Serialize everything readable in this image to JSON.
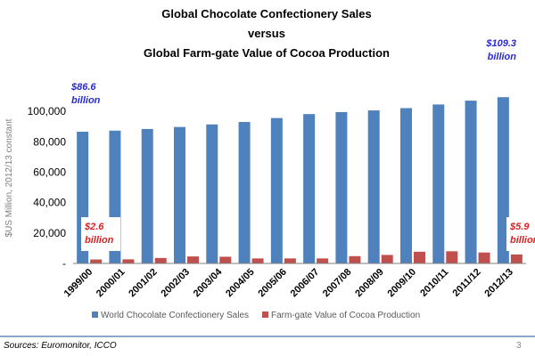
{
  "chart_data": {
    "type": "bar",
    "title_lines": [
      "Global Chocolate Confectionery Sales",
      "versus",
      "Global Farm-gate Value of Cocoa Production"
    ],
    "ylabel": "$US Million, 2012/13 constant",
    "ylim": [
      0,
      110000
    ],
    "yticks": [
      {
        "value": 0,
        "label": "-"
      },
      {
        "value": 20000,
        "label": "20,000"
      },
      {
        "value": 40000,
        "label": "40,000"
      },
      {
        "value": 60000,
        "label": "60,000"
      },
      {
        "value": 80000,
        "label": "80,000"
      },
      {
        "value": 100000,
        "label": "100,000"
      }
    ],
    "categories": [
      "1999/00",
      "2000/01",
      "2001/02",
      "2002/03",
      "2003/04",
      "2004/05",
      "2005/06",
      "2006/07",
      "2007/08",
      "2008/09",
      "2009/10",
      "2010/11",
      "2011/12",
      "2012/13"
    ],
    "series": [
      {
        "name": "World Chocolate Confectionery Sales",
        "color": "#4f81bd",
        "values": [
          86600,
          87300,
          88400,
          89700,
          91400,
          93000,
          95600,
          98200,
          99500,
          100600,
          102100,
          104500,
          107000,
          109300
        ]
      },
      {
        "name": "Farm-gate Value of Cocoa Production",
        "color": "#c0504d",
        "values": [
          2600,
          2700,
          3600,
          4600,
          4400,
          3300,
          3300,
          3300,
          4800,
          5600,
          7700,
          8000,
          7200,
          5900
        ]
      }
    ],
    "annotations": [
      {
        "lines": [
          "$86.6",
          "billion"
        ],
        "color": "blue"
      },
      {
        "lines": [
          "$109.3",
          "billion"
        ],
        "color": "blue"
      },
      {
        "lines": [
          "$2.6",
          "billion"
        ],
        "color": "red"
      },
      {
        "lines": [
          "$5.9",
          "billion"
        ],
        "color": "red"
      }
    ],
    "legend_position": "bottom",
    "grid": false
  },
  "footer": {
    "source": "Sources: Euromonitor, ICCO",
    "page_number": "3"
  }
}
